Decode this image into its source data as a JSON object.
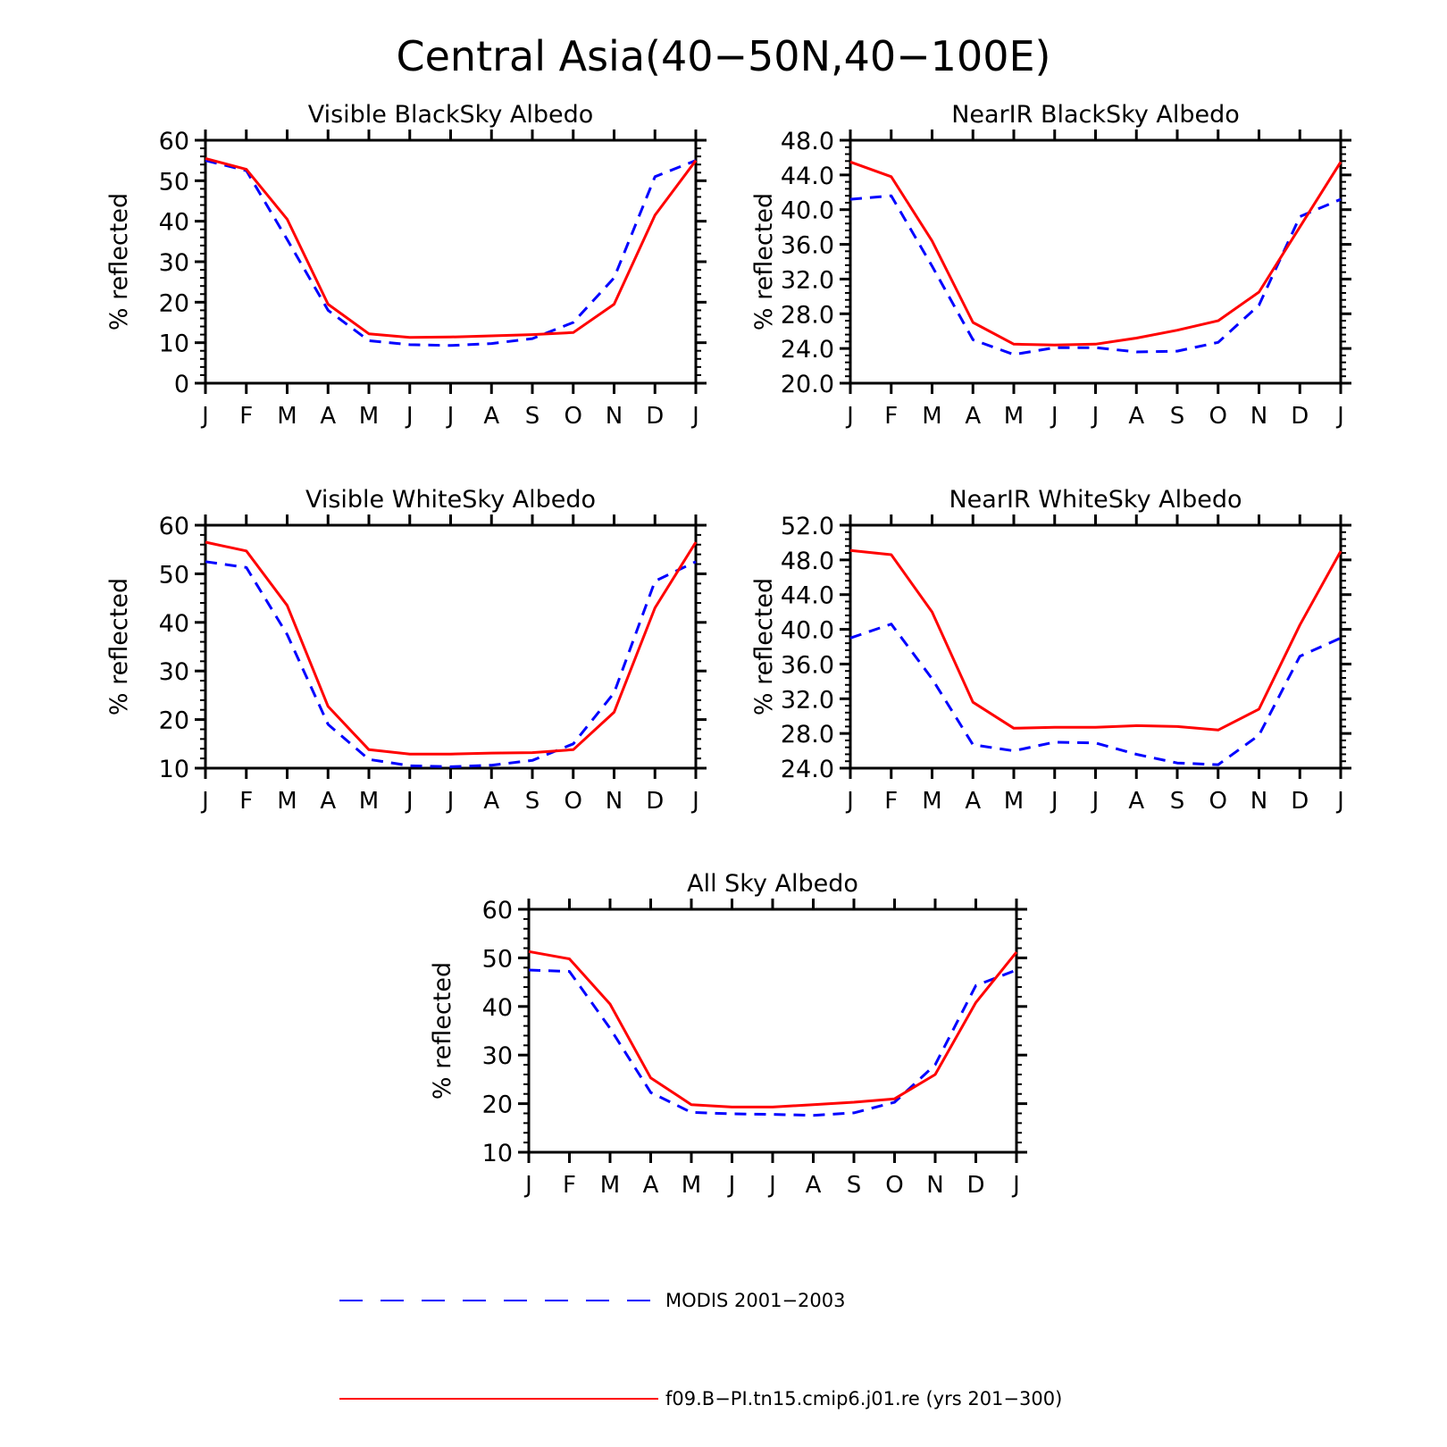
{
  "figure": {
    "title": "Central Asia(40−50N,40−100E)"
  },
  "legend": {
    "placement": "bottom",
    "entries": [
      {
        "label": "MODIS 2001−2003",
        "color": "#0000ff",
        "dash": true
      },
      {
        "label": "f09.B−PI.tn15.cmip6.j01.re (yrs 201−300)",
        "color": "#ff0000",
        "dash": false
      }
    ]
  },
  "chart_data": [
    {
      "type": "line",
      "title": "Visible BlackSky Albedo",
      "ylabel": "% reflected",
      "categories": [
        "J",
        "F",
        "M",
        "A",
        "M",
        "J",
        "J",
        "A",
        "S",
        "O",
        "N",
        "D",
        "J"
      ],
      "ylim": [
        0,
        60
      ],
      "yticks": [
        "0",
        "10",
        "20",
        "30",
        "40",
        "50",
        "60"
      ],
      "series": [
        {
          "name": "MODIS 2001−2003",
          "color": "#0000ff",
          "dash": true,
          "values": [
            55,
            52.5,
            35.5,
            18,
            10.5,
            9.5,
            9.3,
            9.8,
            11,
            15,
            26,
            51,
            55
          ]
        },
        {
          "name": "f09.B−PI.tn15.cmip6.j01.re (yrs 201−300)",
          "color": "#ff0000",
          "dash": false,
          "values": [
            55.5,
            52.8,
            40.5,
            19.5,
            12.2,
            11.3,
            11.4,
            11.7,
            12,
            12.5,
            19.5,
            41.5,
            55
          ]
        }
      ]
    },
    {
      "type": "line",
      "title": "NearIR BlackSky Albedo",
      "ylabel": "% reflected",
      "categories": [
        "J",
        "F",
        "M",
        "A",
        "M",
        "J",
        "J",
        "A",
        "S",
        "O",
        "N",
        "D",
        "J"
      ],
      "ylim": [
        20,
        48
      ],
      "yticks": [
        "20.0",
        "24.0",
        "28.0",
        "32.0",
        "36.0",
        "40.0",
        "44.0",
        "48.0"
      ],
      "series": [
        {
          "name": "MODIS 2001−2003",
          "color": "#0000ff",
          "dash": true,
          "values": [
            41.2,
            41.6,
            33.5,
            25,
            23.3,
            24.1,
            24.1,
            23.6,
            23.7,
            24.7,
            29,
            39.2,
            41.2
          ]
        },
        {
          "name": "f09.B−PI.tn15.cmip6.j01.re (yrs 201−300)",
          "color": "#ff0000",
          "dash": false,
          "values": [
            45.5,
            43.8,
            36.4,
            27,
            24.5,
            24.4,
            24.5,
            25.2,
            26.1,
            27.2,
            30.5,
            38,
            45.5
          ]
        }
      ]
    },
    {
      "type": "line",
      "title": "Visible WhiteSky Albedo",
      "ylabel": "% reflected",
      "categories": [
        "J",
        "F",
        "M",
        "A",
        "M",
        "J",
        "J",
        "A",
        "S",
        "O",
        "N",
        "D",
        "J"
      ],
      "ylim": [
        10,
        60
      ],
      "yticks": [
        "10",
        "20",
        "30",
        "40",
        "50",
        "60"
      ],
      "series": [
        {
          "name": "MODIS 2001−2003",
          "color": "#0000ff",
          "dash": true,
          "values": [
            52.5,
            51.3,
            37.5,
            19,
            11.8,
            10.5,
            10.3,
            10.6,
            11.6,
            15,
            25.5,
            48.5,
            52.5
          ]
        },
        {
          "name": "f09.B−PI.tn15.cmip6.j01.re (yrs 201−300)",
          "color": "#ff0000",
          "dash": false,
          "values": [
            56.5,
            54.7,
            43.5,
            22.7,
            13.8,
            12.9,
            12.9,
            13.1,
            13.2,
            13.8,
            21.5,
            43,
            56.5
          ]
        }
      ]
    },
    {
      "type": "line",
      "title": "NearIR WhiteSky Albedo",
      "ylabel": "% reflected",
      "categories": [
        "J",
        "F",
        "M",
        "A",
        "M",
        "J",
        "J",
        "A",
        "S",
        "O",
        "N",
        "D",
        "J"
      ],
      "ylim": [
        24,
        52
      ],
      "yticks": [
        "24.0",
        "28.0",
        "32.0",
        "36.0",
        "40.0",
        "44.0",
        "48.0",
        "52.0"
      ],
      "series": [
        {
          "name": "MODIS 2001−2003",
          "color": "#0000ff",
          "dash": true,
          "values": [
            39,
            40.6,
            34.3,
            26.7,
            26,
            27,
            26.9,
            25.6,
            24.6,
            24.4,
            27.8,
            36.9,
            39
          ]
        },
        {
          "name": "f09.B−PI.tn15.cmip6.j01.re (yrs 201−300)",
          "color": "#ff0000",
          "dash": false,
          "values": [
            49.1,
            48.6,
            42,
            31.6,
            28.6,
            28.7,
            28.7,
            28.9,
            28.8,
            28.4,
            30.8,
            40.5,
            49
          ]
        }
      ]
    },
    {
      "type": "line",
      "title": "All Sky Albedo",
      "ylabel": "% reflected",
      "categories": [
        "J",
        "F",
        "M",
        "A",
        "M",
        "J",
        "J",
        "A",
        "S",
        "O",
        "N",
        "D",
        "J"
      ],
      "ylim": [
        10,
        60
      ],
      "yticks": [
        "10",
        "20",
        "30",
        "40",
        "50",
        "60"
      ],
      "series": [
        {
          "name": "MODIS 2001−2003",
          "color": "#0000ff",
          "dash": true,
          "values": [
            47.5,
            47.2,
            35.5,
            22.3,
            18.2,
            17.9,
            17.8,
            17.6,
            18.1,
            20.3,
            28,
            44.3,
            47.5
          ]
        },
        {
          "name": "f09.B−PI.tn15.cmip6.j01.re (yrs 201−300)",
          "color": "#ff0000",
          "dash": false,
          "values": [
            51.3,
            49.8,
            40.5,
            25.3,
            19.8,
            19.3,
            19.3,
            19.8,
            20.3,
            21,
            26,
            40.8,
            51.2
          ]
        }
      ]
    }
  ]
}
